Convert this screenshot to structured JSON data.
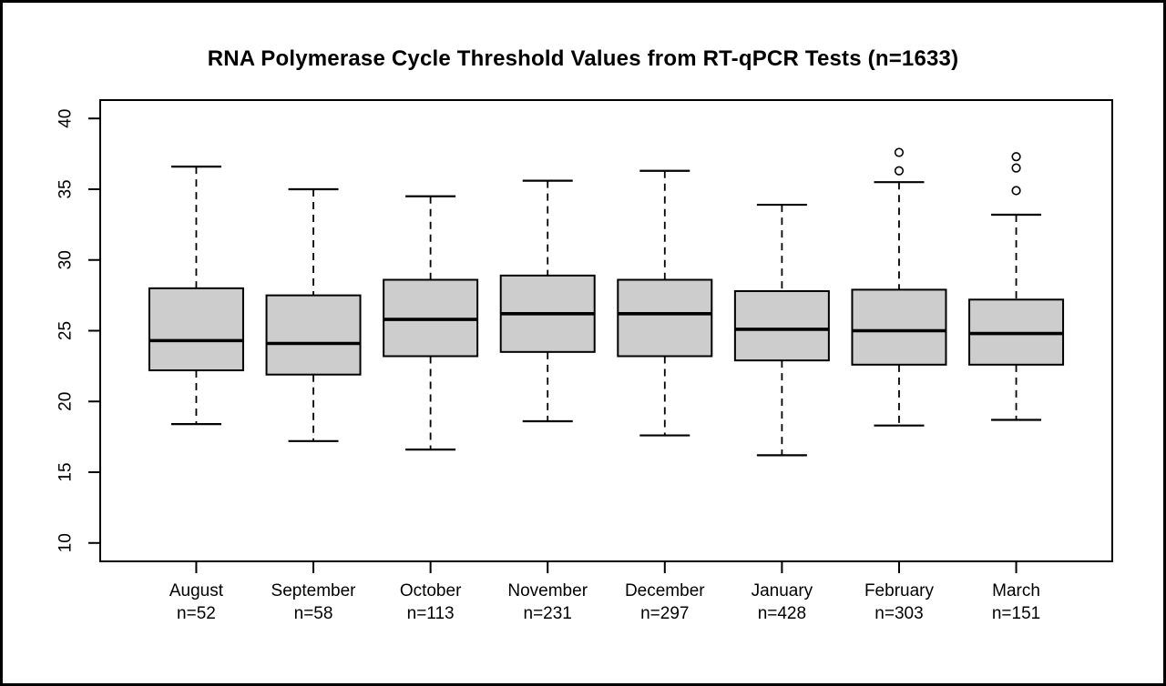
{
  "chart_data": {
    "type": "boxplot",
    "title": "RNA Polymerase Cycle Threshold Values from RT-qPCR Tests (n=1633)",
    "xlabel": "",
    "ylabel": "",
    "ylim": [
      8.7,
      41.3
    ],
    "y_ticks": [
      10,
      15,
      20,
      25,
      30,
      35,
      40
    ],
    "grid": false,
    "legend": "none",
    "box_fill_color": "#cdcdcd",
    "box_border_color": "#000000",
    "total_n": 1633,
    "series": [
      {
        "month": "August",
        "n": 52,
        "n_label": "n=52",
        "whisker_low": 18.4,
        "q1": 22.2,
        "median": 24.3,
        "q3": 28.0,
        "whisker_high": 36.6,
        "outliers": []
      },
      {
        "month": "September",
        "n": 58,
        "n_label": "n=58",
        "whisker_low": 17.2,
        "q1": 21.9,
        "median": 24.1,
        "q3": 27.5,
        "whisker_high": 35.0,
        "outliers": []
      },
      {
        "month": "October",
        "n": 113,
        "n_label": "n=113",
        "whisker_low": 16.6,
        "q1": 23.2,
        "median": 25.8,
        "q3": 28.6,
        "whisker_high": 34.5,
        "outliers": []
      },
      {
        "month": "November",
        "n": 231,
        "n_label": "n=231",
        "whisker_low": 18.6,
        "q1": 23.5,
        "median": 26.2,
        "q3": 28.9,
        "whisker_high": 35.6,
        "outliers": []
      },
      {
        "month": "December",
        "n": 297,
        "n_label": "n=297",
        "whisker_low": 17.6,
        "q1": 23.2,
        "median": 26.2,
        "q3": 28.6,
        "whisker_high": 36.3,
        "outliers": []
      },
      {
        "month": "January",
        "n": 428,
        "n_label": "n=428",
        "whisker_low": 16.2,
        "q1": 22.9,
        "median": 25.1,
        "q3": 27.8,
        "whisker_high": 33.9,
        "outliers": []
      },
      {
        "month": "February",
        "n": 303,
        "n_label": "n=303",
        "whisker_low": 18.3,
        "q1": 22.6,
        "median": 25.0,
        "q3": 27.9,
        "whisker_high": 35.5,
        "outliers": [
          36.3,
          37.6
        ]
      },
      {
        "month": "March",
        "n": 151,
        "n_label": "n=151",
        "whisker_low": 18.7,
        "q1": 22.6,
        "median": 24.8,
        "q3": 27.2,
        "whisker_high": 33.2,
        "outliers": [
          34.9,
          36.5,
          37.3
        ]
      }
    ]
  }
}
